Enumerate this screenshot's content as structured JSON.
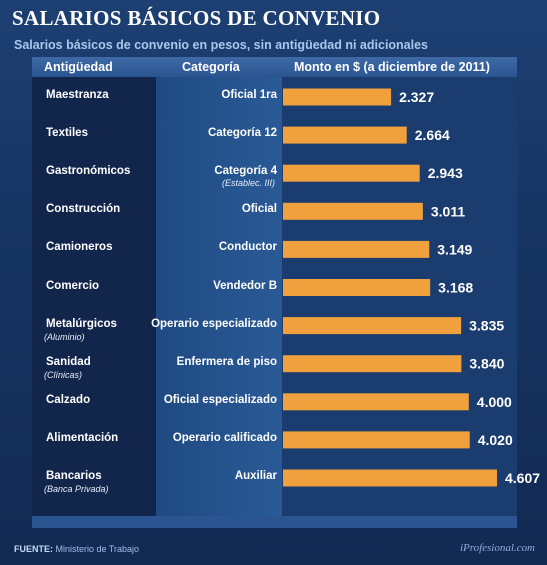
{
  "title": "SALARIOS BÁSICOS DE CONVENIO",
  "subtitle": "Salarios básicos de convenio en pesos, sin antigüedad ni adicionales",
  "headers": {
    "antiguedad": "Antigüedad",
    "categoria": "Categoría",
    "monto": "Monto en $ (a diciembre de 2011)"
  },
  "footer": {
    "source_label": "FUENTE:",
    "source_value": "Ministerio de Trabajo",
    "brand": "iProfesional.com"
  },
  "colors": {
    "bar": "#f0a03c",
    "value_text": "#ffffff"
  },
  "chart_data": {
    "type": "bar",
    "orientation": "horizontal",
    "title": "SALARIOS BÁSICOS DE CONVENIO",
    "subtitle": "Salarios básicos de convenio en pesos, sin antigüedad ni adicionales",
    "xlim": [
      0,
      4607
    ],
    "rows": [
      {
        "sector": "Maestranza",
        "sector_note": "",
        "category": "Oficial 1ra",
        "category_note": "",
        "value": 2327,
        "label": "2.327"
      },
      {
        "sector": "Textiles",
        "sector_note": "",
        "category": "Categoría 12",
        "category_note": "",
        "value": 2664,
        "label": "2.664"
      },
      {
        "sector": "Gastronómicos",
        "sector_note": "",
        "category": "Categoría 4",
        "category_note": "(Establec. III)",
        "value": 2943,
        "label": "2.943"
      },
      {
        "sector": "Construcción",
        "sector_note": "",
        "category": "Oficial",
        "category_note": "",
        "value": 3011,
        "label": "3.011"
      },
      {
        "sector": "Camioneros",
        "sector_note": "",
        "category": "Conductor",
        "category_note": "",
        "value": 3149,
        "label": "3.149"
      },
      {
        "sector": "Comercio",
        "sector_note": "",
        "category": "Vendedor B",
        "category_note": "",
        "value": 3168,
        "label": "3.168"
      },
      {
        "sector": "Metalúrgicos",
        "sector_note": "(Aluminio)",
        "category": "Operario especializado",
        "category_note": "",
        "value": 3835,
        "label": "3.835"
      },
      {
        "sector": "Sanidad",
        "sector_note": "(Clínicas)",
        "category": "Enfermera de piso",
        "category_note": "",
        "value": 3840,
        "label": "3.840"
      },
      {
        "sector": "Calzado",
        "sector_note": "",
        "category": "Oficial especializado",
        "category_note": "",
        "value": 4000,
        "label": "4.000"
      },
      {
        "sector": "Alimentación",
        "sector_note": "",
        "category": "Operario calificado",
        "category_note": "",
        "value": 4020,
        "label": "4.020"
      },
      {
        "sector": "Bancarios",
        "sector_note": "(Banca Privada)",
        "category": "Auxiliar",
        "category_note": "",
        "value": 4607,
        "label": "4.607"
      }
    ]
  }
}
